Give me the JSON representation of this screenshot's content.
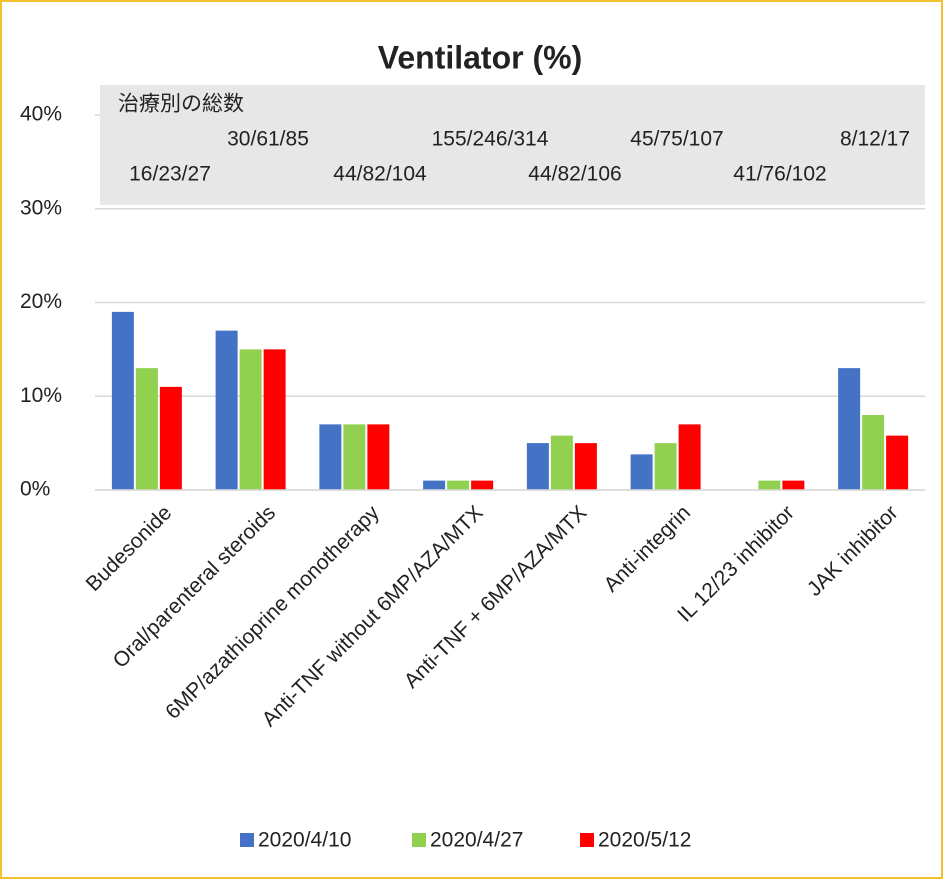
{
  "chart_data": {
    "type": "bar",
    "title": "Ventilator (%)",
    "categories": [
      "Budesonide",
      "Oral/parenteral steroids",
      "6MP/azathioprine monotherapy",
      "Anti-TNF without 6MP/AZA/MTX",
      "Anti-TNF + 6MP/AZA/MTX",
      "Anti-integrin",
      "IL 12/23 inhibitor",
      "JAK inhibitor"
    ],
    "series": [
      {
        "name": "2020/4/10",
        "color": "#4472c4",
        "values": [
          19,
          17,
          7,
          1,
          5,
          3.8,
          0,
          13
        ]
      },
      {
        "name": "2020/4/27",
        "color": "#92d050",
        "values": [
          13,
          15,
          7,
          1,
          5.8,
          5,
          1,
          8
        ]
      },
      {
        "name": "2020/5/12",
        "color": "#ff0000",
        "values": [
          11,
          15,
          7,
          1,
          5,
          7,
          1,
          5.8
        ]
      }
    ],
    "ylim": [
      0,
      40
    ],
    "yticks": [
      {
        "value": 0,
        "label": "0%"
      },
      {
        "value": 10,
        "label": "10%"
      },
      {
        "value": 20,
        "label": "20%"
      },
      {
        "value": 30,
        "label": "30%"
      },
      {
        "value": 40,
        "label": "40%"
      }
    ],
    "grid": true,
    "annotation_title": "治療別の総数",
    "annotations": [
      "16/23/27",
      "30/61/85",
      "44/82/104",
      "155/246/314",
      "44/82/106",
      "45/75/107",
      "41/76/102",
      "8/12/17"
    ],
    "legend": "bottom"
  }
}
